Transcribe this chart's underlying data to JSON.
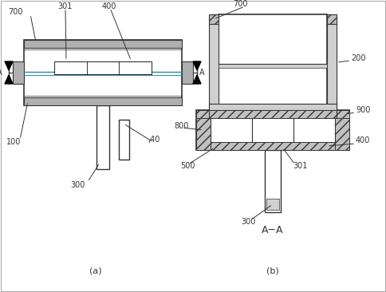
{
  "line_color": "#333333",
  "gray_fill": "#b0b0b0",
  "light_gray": "#d0d0d0",
  "hatch_gray": "#c0c0c0",
  "fig_width": 4.84,
  "fig_height": 3.66,
  "dpi": 100,
  "label_a": "(a)",
  "label_b": "(b)",
  "label_aa": "A−A"
}
